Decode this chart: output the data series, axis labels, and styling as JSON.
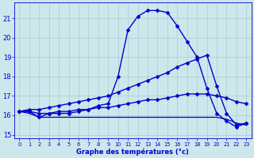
{
  "xlabel": "Graphe des températures (°c)",
  "xlim": [
    -0.5,
    23.5
  ],
  "ylim": [
    14.8,
    21.8
  ],
  "yticks": [
    15,
    16,
    17,
    18,
    19,
    20,
    21
  ],
  "xticks": [
    0,
    1,
    2,
    3,
    4,
    5,
    6,
    7,
    8,
    9,
    10,
    11,
    12,
    13,
    14,
    15,
    16,
    17,
    18,
    19,
    20,
    21,
    22,
    23
  ],
  "bg_color": "#cce8ec",
  "line_color": "#0000cc",
  "grid_color": "#aacccc",
  "series": {
    "actual": {
      "x": [
        0,
        1,
        2,
        3,
        4,
        5,
        6,
        7,
        8,
        9,
        10,
        11,
        12,
        13,
        14,
        15,
        16,
        17,
        18,
        19,
        20,
        21,
        22,
        23
      ],
      "y": [
        16.2,
        16.2,
        15.9,
        16.1,
        16.1,
        16.1,
        16.2,
        16.3,
        16.5,
        16.6,
        18.0,
        20.4,
        21.1,
        21.4,
        21.4,
        21.3,
        20.6,
        19.8,
        19.0,
        17.4,
        16.1,
        15.7,
        15.4,
        15.6
      ],
      "marker": "D",
      "markersize": 2.5,
      "linewidth": 1.0
    },
    "tmax": {
      "x": [
        0,
        1,
        2,
        3,
        4,
        5,
        6,
        7,
        8,
        9,
        10,
        11,
        12,
        13,
        14,
        15,
        16,
        17,
        18,
        19,
        20,
        21,
        22,
        23
      ],
      "y": [
        16.2,
        16.3,
        16.3,
        16.4,
        16.5,
        16.6,
        16.7,
        16.8,
        16.9,
        17.0,
        17.2,
        17.4,
        17.6,
        17.8,
        18.0,
        18.2,
        18.5,
        18.7,
        18.9,
        19.1,
        17.5,
        16.1,
        15.5,
        15.6
      ],
      "marker": "D",
      "markersize": 2.5,
      "linewidth": 1.0
    },
    "tmid": {
      "x": [
        0,
        1,
        2,
        3,
        4,
        5,
        6,
        7,
        8,
        9,
        10,
        11,
        12,
        13,
        14,
        15,
        16,
        17,
        18,
        19,
        20,
        21,
        22,
        23
      ],
      "y": [
        16.2,
        16.2,
        16.1,
        16.1,
        16.2,
        16.2,
        16.3,
        16.3,
        16.4,
        16.4,
        16.5,
        16.6,
        16.7,
        16.8,
        16.8,
        16.9,
        17.0,
        17.1,
        17.1,
        17.1,
        17.0,
        16.9,
        16.7,
        16.6
      ],
      "marker": "D",
      "markersize": 2.5,
      "linewidth": 1.0
    },
    "tmin": {
      "x": [
        0,
        1,
        2,
        3,
        4,
        5,
        6,
        7,
        8,
        9,
        10,
        11,
        12,
        13,
        14,
        15,
        16,
        17,
        18,
        19,
        20,
        21,
        22,
        23
      ],
      "y": [
        16.2,
        16.1,
        15.9,
        15.9,
        15.9,
        15.9,
        15.9,
        15.9,
        15.9,
        15.9,
        15.9,
        15.9,
        15.9,
        15.9,
        15.9,
        15.9,
        15.9,
        15.9,
        15.9,
        15.9,
        15.9,
        15.8,
        15.6,
        15.5
      ],
      "marker": null,
      "linewidth": 0.9
    }
  }
}
